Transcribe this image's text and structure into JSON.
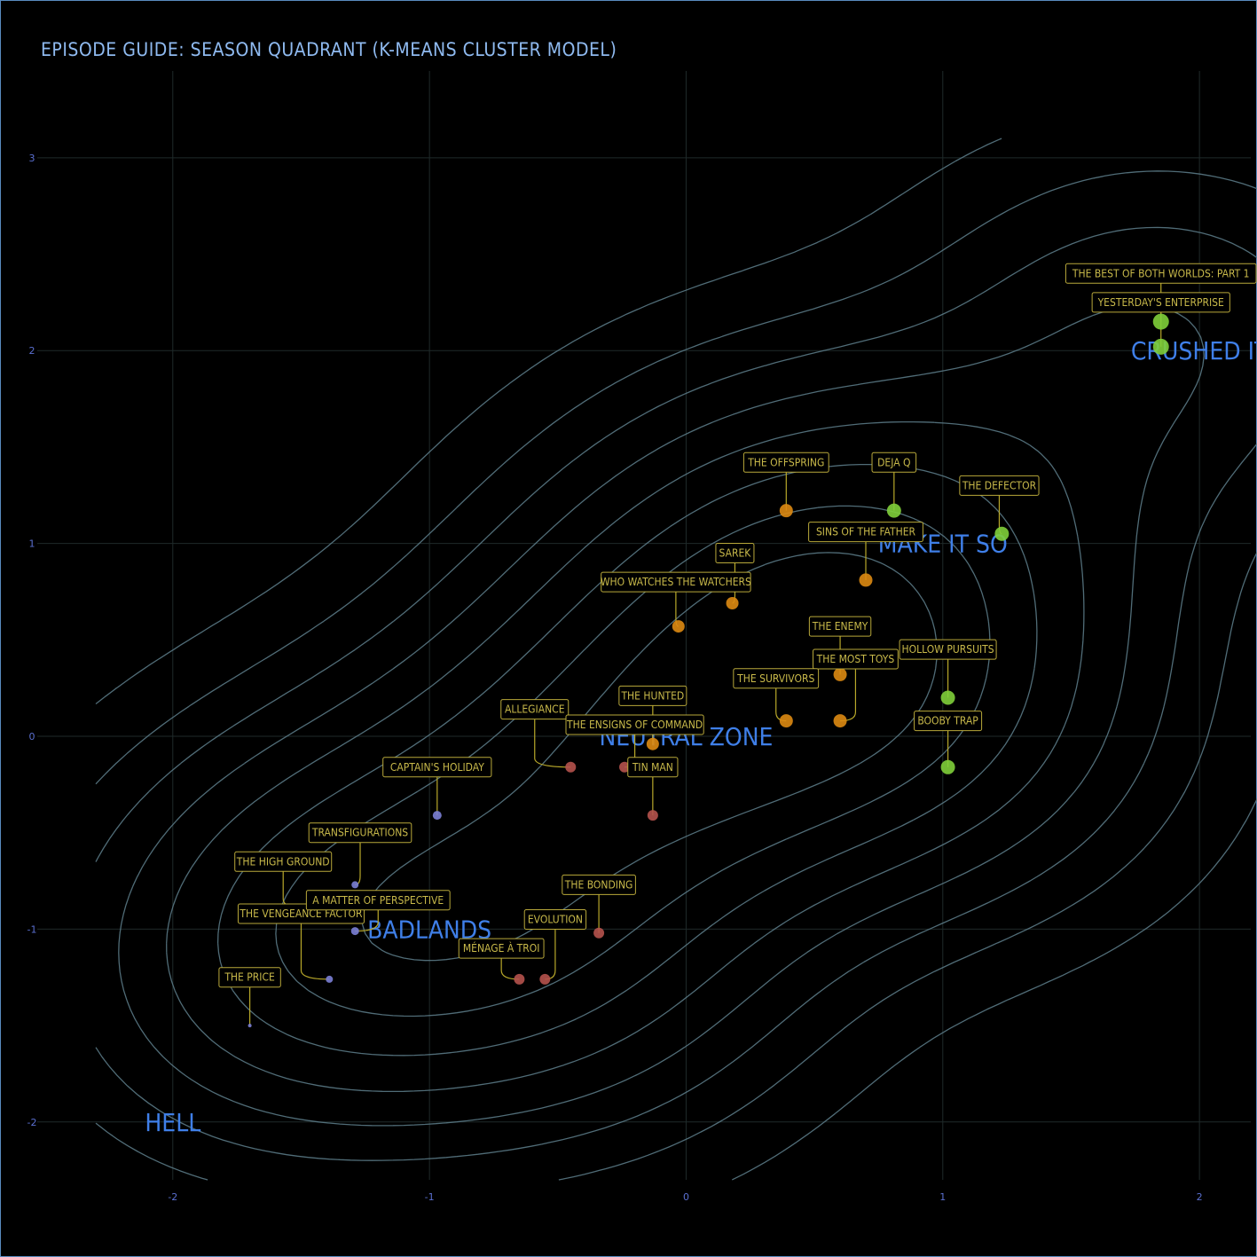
{
  "page": {
    "title": "EPISODE GUIDE: SEASON QUADRANT (K-MEANS CLUSTER MODEL)"
  },
  "chart_data": {
    "type": "scatter",
    "title": "EPISODE GUIDE: SEASON QUADRANT (K-MEANS CLUSTER MODEL)",
    "xlabel": "",
    "ylabel": "",
    "xlim": [
      -2.3,
      2.2
    ],
    "ylim": [
      -2.3,
      3.45
    ],
    "x_ticks": [
      -2,
      -1,
      0,
      1,
      2
    ],
    "y_ticks": [
      -2,
      -1,
      0,
      1,
      2,
      3
    ],
    "grid": true,
    "density_contours": true,
    "colors": {
      "background": "#000000",
      "grid": "#1f2a2a",
      "contour": "#5e7f8c",
      "label_text": "#c8b94a",
      "leader": "#b8a82a",
      "zone_text": "#3f7fe8",
      "tick_text": "#5a6fd0",
      "cluster_purple": "#7b7fd6",
      "cluster_red": "#b5524c",
      "cluster_orange": "#dd8a12",
      "cluster_green": "#7fcf3a"
    },
    "zones": [
      {
        "label": "HELL",
        "x": -2.0,
        "y": -2.0
      },
      {
        "label": "BADLANDS",
        "x": -1.0,
        "y": -1.0
      },
      {
        "label": "NEUTRAL ZONE",
        "x": 0.0,
        "y": 0.0
      },
      {
        "label": "MAKE IT SO",
        "x": 1.0,
        "y": 1.0
      },
      {
        "label": "CRUSHED IT",
        "x": 2.0,
        "y": 2.0
      }
    ],
    "points": [
      {
        "label": "THE PRICE",
        "x": -1.7,
        "y": -1.5,
        "cluster": "purple",
        "size": 2,
        "lx": -1.7,
        "ly": -1.25
      },
      {
        "label": "THE VENGEANCE FACTOR",
        "x": -1.39,
        "y": -1.26,
        "cluster": "purple",
        "size": 4,
        "lx": -1.5,
        "ly": -0.92
      },
      {
        "label": "THE HIGH GROUND",
        "x": -1.49,
        "y": -0.89,
        "cluster": "purple",
        "size": 4,
        "lx": -1.57,
        "ly": -0.65
      },
      {
        "label": "TRANSFIGURATIONS",
        "x": -1.29,
        "y": -0.77,
        "cluster": "purple",
        "size": 4,
        "lx": -1.27,
        "ly": -0.5
      },
      {
        "label": "A MATTER OF PERSPECTIVE",
        "x": -1.29,
        "y": -1.01,
        "cluster": "purple",
        "size": 4.5,
        "lx": -1.2,
        "ly": -0.85
      },
      {
        "label": "CAPTAIN'S HOLIDAY",
        "x": -0.97,
        "y": -0.41,
        "cluster": "purple",
        "size": 5,
        "lx": -0.97,
        "ly": -0.16
      },
      {
        "label": "MÉNAGE À TROI",
        "x": -0.65,
        "y": -1.26,
        "cluster": "red",
        "size": 6,
        "lx": -0.72,
        "ly": -1.1
      },
      {
        "label": "EVOLUTION",
        "x": -0.55,
        "y": -1.26,
        "cluster": "red",
        "size": 6,
        "lx": -0.51,
        "ly": -0.95
      },
      {
        "label": "THE BONDING",
        "x": -0.34,
        "y": -1.02,
        "cluster": "red",
        "size": 6,
        "lx": -0.34,
        "ly": -0.77
      },
      {
        "label": "ALLEGIANCE",
        "x": -0.45,
        "y": -0.16,
        "cluster": "red",
        "size": 6,
        "lx": -0.59,
        "ly": 0.14
      },
      {
        "label": "THE ENSIGNS OF COMMAND",
        "x": -0.24,
        "y": -0.16,
        "cluster": "red",
        "size": 6,
        "lx": -0.2,
        "ly": 0.06
      },
      {
        "label": "TIN MAN",
        "x": -0.13,
        "y": -0.41,
        "cluster": "red",
        "size": 6,
        "lx": -0.13,
        "ly": -0.16
      },
      {
        "label": "THE HUNTED",
        "x": -0.13,
        "y": -0.04,
        "cluster": "orange",
        "size": 7,
        "lx": -0.13,
        "ly": 0.21
      },
      {
        "label": "WHO WATCHES THE WATCHERS",
        "x": -0.03,
        "y": 0.57,
        "cluster": "orange",
        "size": 7,
        "lx": -0.04,
        "ly": 0.8
      },
      {
        "label": "SAREK",
        "x": 0.18,
        "y": 0.69,
        "cluster": "orange",
        "size": 7,
        "lx": 0.19,
        "ly": 0.95
      },
      {
        "label": "THE OFFSPRING",
        "x": 0.39,
        "y": 1.17,
        "cluster": "orange",
        "size": 7.5,
        "lx": 0.39,
        "ly": 1.42
      },
      {
        "label": "SINS OF THE FATHER",
        "x": 0.7,
        "y": 0.81,
        "cluster": "orange",
        "size": 7.5,
        "lx": 0.7,
        "ly": 1.06
      },
      {
        "label": "THE ENEMY",
        "x": 0.6,
        "y": 0.32,
        "cluster": "orange",
        "size": 7.5,
        "lx": 0.6,
        "ly": 0.57
      },
      {
        "label": "THE MOST TOYS",
        "x": 0.6,
        "y": 0.08,
        "cluster": "orange",
        "size": 7.5,
        "lx": 0.66,
        "ly": 0.4
      },
      {
        "label": "THE SURVIVORS",
        "x": 0.39,
        "y": 0.08,
        "cluster": "orange",
        "size": 7.5,
        "lx": 0.35,
        "ly": 0.3
      },
      {
        "label": "DEJA Q",
        "x": 0.81,
        "y": 1.17,
        "cluster": "green",
        "size": 8,
        "lx": 0.81,
        "ly": 1.42
      },
      {
        "label": "THE DEFECTOR",
        "x": 1.23,
        "y": 1.05,
        "cluster": "green",
        "size": 8,
        "lx": 1.22,
        "ly": 1.3
      },
      {
        "label": "HOLLOW PURSUITS",
        "x": 1.02,
        "y": 0.2,
        "cluster": "green",
        "size": 8,
        "lx": 1.02,
        "ly": 0.45
      },
      {
        "label": "BOOBY TRAP",
        "x": 1.02,
        "y": -0.16,
        "cluster": "green",
        "size": 8,
        "lx": 1.02,
        "ly": 0.08
      },
      {
        "label": "YESTERDAY'S ENTERPRISE",
        "x": 1.85,
        "y": 2.02,
        "cluster": "green",
        "size": 9,
        "lx": 1.85,
        "ly": 2.25
      },
      {
        "label": "THE BEST OF BOTH WORLDS: PART 1",
        "x": 1.85,
        "y": 2.15,
        "cluster": "green",
        "size": 9,
        "lx": 1.85,
        "ly": 2.4
      }
    ]
  }
}
